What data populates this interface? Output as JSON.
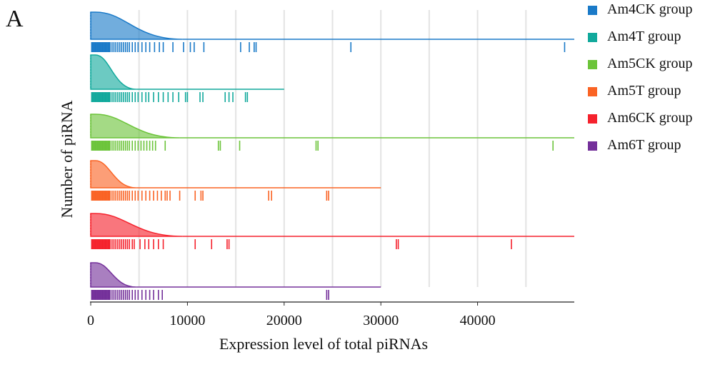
{
  "panel_label": "A",
  "chart_data": {
    "type": "raincloud",
    "xlabel": "Expression level of total piRNAs",
    "ylabel": "Number of piRNA",
    "xlim": [
      0,
      50000
    ],
    "xticks": [
      0,
      10000,
      20000,
      30000,
      40000
    ],
    "xtick_labels": [
      "0",
      "10000",
      "20000",
      "30000",
      "40000"
    ],
    "grid_x": [
      5000,
      10000,
      15000,
      20000,
      25000,
      30000,
      35000,
      40000,
      45000
    ],
    "legend_position": "right",
    "series": [
      {
        "name": "Am4CK group",
        "color": "#1a7ac8",
        "max": 50000,
        "density_peak": 500,
        "density_tail": 9500,
        "values": [
          100,
          200,
          300,
          400,
          500,
          600,
          700,
          800,
          900,
          1000,
          1100,
          1200,
          1300,
          1400,
          1500,
          1600,
          1700,
          1800,
          1900,
          2000,
          2200,
          2400,
          2600,
          2800,
          3000,
          3200,
          3400,
          3600,
          3800,
          4000,
          4300,
          4600,
          4900,
          5300,
          5700,
          6100,
          6600,
          7100,
          7500,
          8500,
          9600,
          10300,
          10700,
          11700,
          15500,
          16400,
          16900,
          17100,
          26900,
          49000
        ]
      },
      {
        "name": "Am4T group",
        "color": "#11a99c",
        "max": 20000,
        "density_peak": 500,
        "density_tail": 4700,
        "values": [
          100,
          200,
          300,
          400,
          500,
          600,
          700,
          800,
          900,
          1000,
          1100,
          1200,
          1300,
          1400,
          1500,
          1600,
          1700,
          1800,
          1900,
          2000,
          2200,
          2400,
          2600,
          2800,
          3000,
          3200,
          3400,
          3600,
          3800,
          4000,
          4300,
          4600,
          4900,
          5300,
          5700,
          6000,
          6500,
          7000,
          7500,
          8000,
          8500,
          9100,
          9800,
          10000,
          11300,
          11600,
          13900,
          14300,
          14700,
          16000,
          16200
        ]
      },
      {
        "name": "Am5CK group",
        "color": "#6cc43a",
        "max": 50000,
        "density_peak": 500,
        "density_tail": 9200,
        "values": [
          100,
          200,
          300,
          400,
          500,
          600,
          700,
          800,
          900,
          1000,
          1100,
          1200,
          1300,
          1400,
          1500,
          1600,
          1700,
          1800,
          1900,
          2000,
          2200,
          2400,
          2600,
          2800,
          3000,
          3200,
          3400,
          3600,
          3800,
          4000,
          4300,
          4600,
          4900,
          5200,
          5500,
          5800,
          6100,
          6400,
          6700,
          7700,
          13200,
          13400,
          15400,
          23300,
          23500,
          47800
        ]
      },
      {
        "name": "Am5T group",
        "color": "#fa6324",
        "max": 30000,
        "density_peak": 500,
        "density_tail": 4700,
        "values": [
          100,
          200,
          300,
          400,
          500,
          600,
          700,
          800,
          900,
          1000,
          1100,
          1200,
          1300,
          1400,
          1500,
          1600,
          1700,
          1800,
          1900,
          2000,
          2200,
          2400,
          2600,
          2800,
          3000,
          3200,
          3400,
          3600,
          3800,
          4000,
          4300,
          4600,
          4900,
          5300,
          5700,
          6100,
          6500,
          6900,
          7300,
          7700,
          7900,
          8200,
          9200,
          10800,
          11400,
          11600,
          18400,
          18700,
          24400,
          24600
        ]
      },
      {
        "name": "Am6CK group",
        "color": "#f5222d",
        "max": 50000,
        "density_peak": 500,
        "density_tail": 9500,
        "values": [
          100,
          200,
          300,
          400,
          500,
          600,
          700,
          800,
          900,
          1000,
          1100,
          1200,
          1300,
          1400,
          1500,
          1600,
          1700,
          1800,
          1900,
          2000,
          2200,
          2400,
          2600,
          2800,
          3000,
          3200,
          3400,
          3600,
          3800,
          4000,
          4300,
          4500,
          5100,
          5600,
          6000,
          6500,
          7000,
          7500,
          10800,
          12500,
          14100,
          14300,
          31600,
          31800,
          43500
        ]
      },
      {
        "name": "Am6T group",
        "color": "#74309a",
        "max": 30000,
        "density_peak": 500,
        "density_tail": 4700,
        "values": [
          100,
          200,
          300,
          400,
          500,
          600,
          700,
          800,
          900,
          1000,
          1100,
          1200,
          1300,
          1400,
          1500,
          1600,
          1700,
          1800,
          1900,
          2000,
          2200,
          2400,
          2600,
          2800,
          3000,
          3200,
          3400,
          3600,
          3800,
          4000,
          4300,
          4600,
          4900,
          5300,
          5700,
          6100,
          6500,
          7000,
          7400,
          24400,
          24600
        ]
      }
    ]
  }
}
